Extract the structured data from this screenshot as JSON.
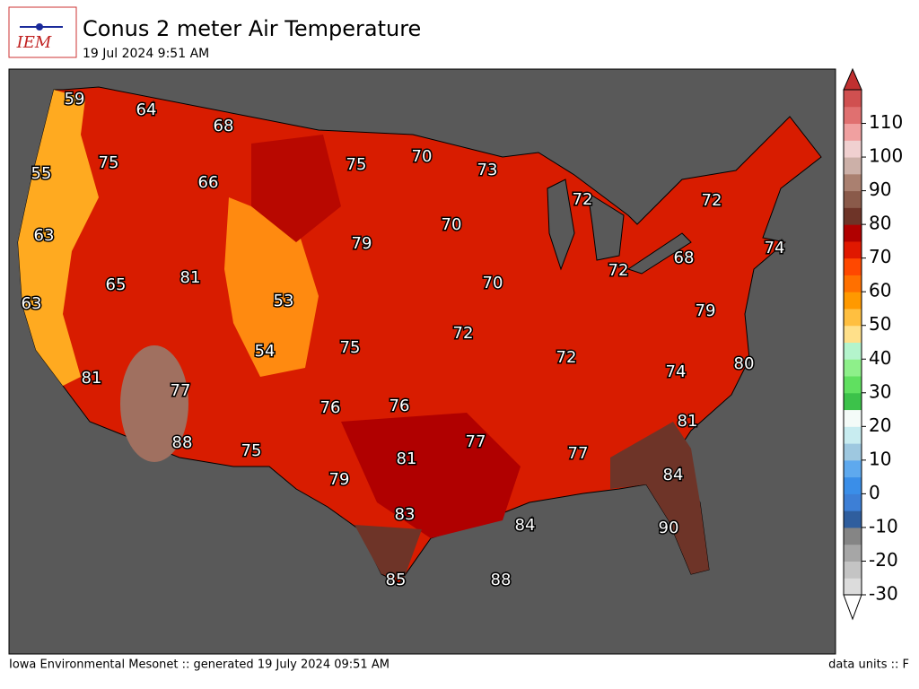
{
  "header": {
    "logo_text": "IEM",
    "title": "Conus 2 meter Air Temperature",
    "subtitle": "19 Jul 2024 9:51 AM"
  },
  "map": {
    "labels": [
      59,
      64,
      68,
      75,
      55,
      66,
      75,
      70,
      73,
      72,
      72,
      63,
      79,
      70,
      74,
      68,
      72,
      81,
      65,
      53,
      70,
      63,
      79,
      72,
      75,
      54,
      72,
      80,
      74,
      81,
      77,
      76,
      76,
      81,
      88,
      77,
      77,
      75,
      81,
      84,
      79,
      83,
      84,
      90,
      85,
      88
    ]
  },
  "colorbar": {
    "lim": [
      -30,
      120
    ],
    "ticks": [
      -30,
      -20,
      -10,
      0,
      10,
      20,
      30,
      40,
      50,
      60,
      70,
      80,
      90,
      100,
      110
    ],
    "colors": [
      "#dcdcdc",
      "#c4c4c4",
      "#a6a6a6",
      "#858585",
      "#2f5e9e",
      "#3d7fd6",
      "#3a8ee8",
      "#5ea9ee",
      "#9ec8e0",
      "#c8ecf0",
      "#f4fbf8",
      "#3cc24a",
      "#60e060",
      "#8ef08a",
      "#b4f4cc",
      "#ffe08a",
      "#ffbf40",
      "#ff9900",
      "#ff7000",
      "#ff4800",
      "#e01800",
      "#b00000",
      "#6e3428",
      "#8a5a4a",
      "#aa8070",
      "#ccb0a8",
      "#f0d0d0",
      "#f0a0a0",
      "#e07070",
      "#d05050"
    ],
    "under_color": "#ffffff",
    "over_color": "#c03030"
  },
  "footer": {
    "left": "Iowa Environmental Mesonet :: generated 19 July 2024 09:51 AM",
    "right": "data units :: F"
  }
}
